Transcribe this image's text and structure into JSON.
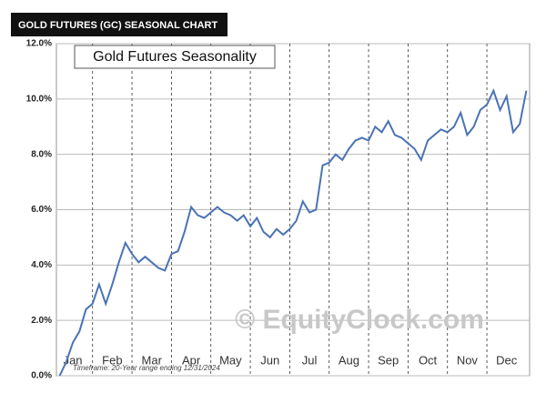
{
  "header": {
    "title": "GOLD FUTURES (GC) SEASONAL CHART"
  },
  "chart_data": {
    "type": "line",
    "title": "Gold Futures Seasonality",
    "watermark": "© EquityClock.com",
    "footnote": "Timeframe: 20-Year range ending 12/31/2024",
    "categories": [
      null,
      null,
      "Jan",
      null,
      null,
      null,
      null,
      null,
      "Feb",
      null,
      null,
      null,
      null,
      null,
      "Mar",
      null,
      null,
      null,
      null,
      null,
      "Apr",
      null,
      null,
      null,
      null,
      null,
      "May",
      null,
      null,
      null,
      null,
      null,
      "Jun",
      null,
      null,
      null,
      null,
      null,
      "Jul",
      null,
      null,
      null,
      null,
      null,
      "Aug",
      null,
      null,
      null,
      null,
      null,
      "Sep",
      null,
      null,
      null,
      null,
      null,
      "Oct",
      null,
      null,
      null,
      null,
      null,
      "Nov",
      null,
      null,
      null,
      null,
      null,
      "Dec",
      null,
      null,
      null
    ],
    "series": [
      {
        "name": "Gold Futures",
        "color": "#4a73b5",
        "values": [
          0,
          0.5,
          1.2,
          1.6,
          2.4,
          2.6,
          3.3,
          2.6,
          3.3,
          4.1,
          4.8,
          4.4,
          4.1,
          4.3,
          4.1,
          3.9,
          3.8,
          4.4,
          4.5,
          5.2,
          6.1,
          5.8,
          5.7,
          5.9,
          6.1,
          5.9,
          5.8,
          5.6,
          5.8,
          5.4,
          5.7,
          5.2,
          5.0,
          5.3,
          5.1,
          5.3,
          5.6,
          6.3,
          5.9,
          6.0,
          7.6,
          7.7,
          8.0,
          7.8,
          8.2,
          8.5,
          8.6,
          8.5,
          9.0,
          8.8,
          9.2,
          8.7,
          8.6,
          8.4,
          8.2,
          7.8,
          8.5,
          8.7,
          8.9,
          8.8,
          9.0,
          9.5,
          8.7,
          9.0,
          9.6,
          9.8,
          10.3,
          9.6,
          10.1,
          8.8,
          9.1,
          10.3
        ]
      }
    ],
    "ylim": [
      0,
      12
    ],
    "yticks": [
      {
        "value": 0,
        "label": "0.0%"
      },
      {
        "value": 2,
        "label": "2.0%"
      },
      {
        "value": 4,
        "label": "4.0%"
      },
      {
        "value": 6,
        "label": "6.0%"
      },
      {
        "value": 8,
        "label": "8.0%"
      },
      {
        "value": 10,
        "label": "10.0%"
      },
      {
        "value": 12,
        "label": "12.0%"
      }
    ],
    "grid": true
  }
}
